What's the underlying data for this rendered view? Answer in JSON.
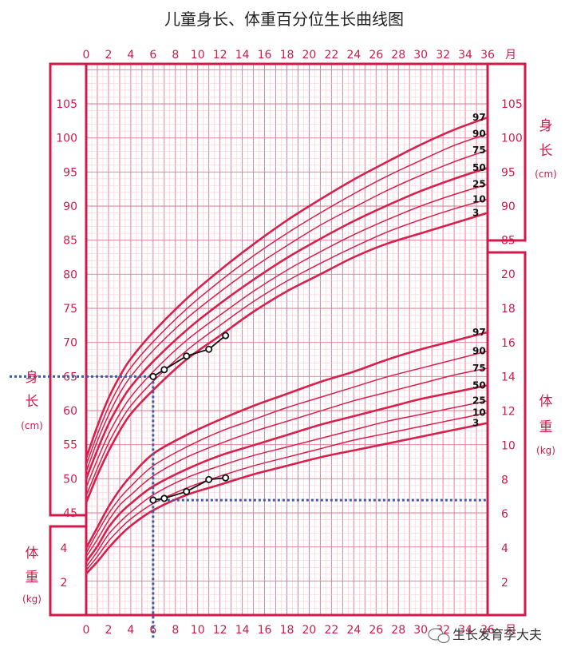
{
  "chart_data": {
    "type": "line",
    "title": "儿童身长、体重百分位生长曲线图",
    "x_unit": "月",
    "x_ticks": [
      0,
      2,
      4,
      6,
      8,
      10,
      12,
      14,
      16,
      18,
      20,
      22,
      24,
      26,
      28,
      30,
      32,
      34,
      36
    ],
    "xlim": [
      0,
      36
    ],
    "length_axis": {
      "label": "身长",
      "unit": "(cm)",
      "ticks": [
        45,
        50,
        55,
        60,
        65,
        70,
        75,
        80,
        85,
        90,
        95,
        100,
        105
      ]
    },
    "weight_axis": {
      "label": "体重",
      "unit": "(kg)",
      "ticks": [
        2,
        4,
        6,
        8,
        10,
        12,
        14,
        16,
        18,
        20
      ]
    },
    "percentiles": [
      "3",
      "10",
      "25",
      "50",
      "75",
      "90",
      "97"
    ],
    "x": [
      0,
      1,
      2,
      3,
      4,
      6,
      9,
      12,
      15,
      18,
      21,
      24,
      27,
      30,
      33,
      36
    ],
    "length_series": [
      {
        "name": "3",
        "values": [
          46.5,
          50.5,
          54,
          57,
          59.5,
          63,
          67.5,
          71,
          74.5,
          77.5,
          80,
          82.5,
          84.5,
          86,
          87.5,
          89
        ]
      },
      {
        "name": "10",
        "values": [
          47.5,
          51.5,
          55.2,
          58.2,
          60.7,
          64.3,
          68.8,
          72.5,
          76,
          79,
          81.6,
          84,
          86.2,
          88,
          89.6,
          91
        ]
      },
      {
        "name": "25",
        "values": [
          48.7,
          52.8,
          56.5,
          59.5,
          62,
          65.7,
          70.3,
          74,
          77.5,
          80.6,
          83.3,
          85.8,
          88,
          90,
          91.7,
          93.2
        ]
      },
      {
        "name": "50",
        "values": [
          50,
          54.2,
          58,
          61,
          63.5,
          67.2,
          71.8,
          75.7,
          79.2,
          82.4,
          85.2,
          87.8,
          90.1,
          92.2,
          94,
          95.6
        ]
      },
      {
        "name": "75",
        "values": [
          51,
          55.5,
          59.3,
          62.5,
          65,
          68.8,
          73.5,
          77.4,
          81,
          84.2,
          87.2,
          89.8,
          92.3,
          94.5,
          96.5,
          98.2
        ]
      },
      {
        "name": "90",
        "values": [
          52,
          56.5,
          60.5,
          63.7,
          66.3,
          70.1,
          74.9,
          79,
          82.7,
          86,
          89,
          91.8,
          94.4,
          96.7,
          98.9,
          100.6
        ]
      },
      {
        "name": "97",
        "values": [
          53,
          57.7,
          61.8,
          65,
          67.6,
          71.5,
          76.4,
          80.6,
          84.4,
          87.9,
          91,
          93.9,
          96.5,
          99,
          101.2,
          103
        ]
      }
    ],
    "weight_series": [
      {
        "name": "3",
        "values": [
          2.5,
          3.2,
          4,
          4.7,
          5.3,
          6.2,
          7.1,
          7.7,
          8.3,
          8.8,
          9.3,
          9.7,
          10.1,
          10.5,
          10.9,
          11.3
        ]
      },
      {
        "name": "10",
        "values": [
          2.7,
          3.5,
          4.4,
          5.1,
          5.7,
          6.6,
          7.5,
          8.2,
          8.8,
          9.3,
          9.8,
          10.3,
          10.7,
          11.1,
          11.5,
          11.9
        ]
      },
      {
        "name": "25",
        "values": [
          2.9,
          3.8,
          4.8,
          5.5,
          6.1,
          7.1,
          8.1,
          8.8,
          9.4,
          9.9,
          10.4,
          10.9,
          11.4,
          11.8,
          12.2,
          12.6
        ]
      },
      {
        "name": "50",
        "values": [
          3.2,
          4.1,
          5.2,
          6,
          6.6,
          7.6,
          8.6,
          9.4,
          10,
          10.6,
          11.2,
          11.7,
          12.2,
          12.7,
          13.1,
          13.5
        ]
      },
      {
        "name": "75",
        "values": [
          3.5,
          4.5,
          5.6,
          6.5,
          7.1,
          8.2,
          9.3,
          10.1,
          10.8,
          11.4,
          12,
          12.6,
          13.1,
          13.6,
          14.1,
          14.5
        ]
      },
      {
        "name": "90",
        "values": [
          3.7,
          4.9,
          6,
          6.9,
          7.6,
          8.8,
          9.9,
          10.8,
          11.5,
          12.2,
          12.8,
          13.4,
          14,
          14.5,
          15,
          15.5
        ]
      },
      {
        "name": "97",
        "values": [
          4,
          5.2,
          6.4,
          7.4,
          8.2,
          9.5,
          10.6,
          11.5,
          12.3,
          13,
          13.7,
          14.3,
          15,
          15.6,
          16.1,
          16.6
        ]
      }
    ],
    "child_length": {
      "x": [
        6,
        7,
        9,
        11,
        12.5
      ],
      "values": [
        65,
        66,
        68,
        69,
        71
      ]
    },
    "child_weight": {
      "x": [
        6,
        7,
        9,
        11,
        12.5
      ],
      "values": [
        6.8,
        6.9,
        7.3,
        8.0,
        8.1
      ]
    },
    "guides": {
      "age": 6,
      "length": 65,
      "weight": 6.8
    },
    "colors": {
      "grid_major": "#e8738f",
      "grid_minor": "#f7c5d2",
      "curve": "#d8204c",
      "child": "#111111",
      "guide": "#3a5ea6",
      "frame": "#d11a4a"
    }
  },
  "watermark": {
    "text": "生长发育李大夫",
    "icon": "wechat-icon"
  }
}
